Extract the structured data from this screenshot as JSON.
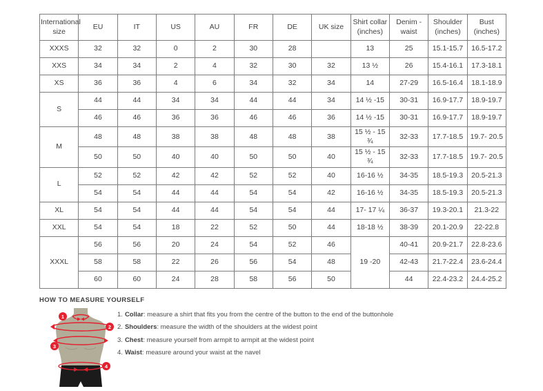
{
  "size_chart": {
    "headers": [
      "International size",
      "EU",
      "IT",
      "US",
      "AU",
      "FR",
      "DE",
      "UK size",
      "Shirt collar (inches)",
      "Denim - waist",
      "Shoulder (inches)",
      "Bust (inches)"
    ],
    "rows": [
      [
        {
          "t": "XXXS"
        },
        {
          "t": "32"
        },
        {
          "t": "32"
        },
        {
          "t": "0"
        },
        {
          "t": "2"
        },
        {
          "t": "30"
        },
        {
          "t": "28"
        },
        {
          "t": ""
        },
        {
          "t": "13"
        },
        {
          "t": "25"
        },
        {
          "t": "15.1-15.7"
        },
        {
          "t": "16.5-17.2"
        }
      ],
      [
        {
          "t": "XXS"
        },
        {
          "t": "34"
        },
        {
          "t": "34"
        },
        {
          "t": "2"
        },
        {
          "t": "4"
        },
        {
          "t": "32"
        },
        {
          "t": "30"
        },
        {
          "t": "32"
        },
        {
          "t": "13 ½"
        },
        {
          "t": "26"
        },
        {
          "t": "15.4-16.1"
        },
        {
          "t": "17.3-18.1"
        }
      ],
      [
        {
          "t": "XS"
        },
        {
          "t": "36"
        },
        {
          "t": "36"
        },
        {
          "t": "4"
        },
        {
          "t": "6"
        },
        {
          "t": "34"
        },
        {
          "t": "32"
        },
        {
          "t": "34"
        },
        {
          "t": "14"
        },
        {
          "t": "27-29"
        },
        {
          "t": "16.5-16.4"
        },
        {
          "t": "18.1-18.9"
        }
      ],
      [
        {
          "t": "S",
          "rs": 2
        },
        {
          "t": "44"
        },
        {
          "t": "44"
        },
        {
          "t": "34"
        },
        {
          "t": "34"
        },
        {
          "t": "44"
        },
        {
          "t": "44"
        },
        {
          "t": "34"
        },
        {
          "t": "14 ½ -15"
        },
        {
          "t": "30-31"
        },
        {
          "t": "16.9-17.7"
        },
        {
          "t": "18.9-19.7"
        }
      ],
      [
        {
          "t": "46"
        },
        {
          "t": "46"
        },
        {
          "t": "36"
        },
        {
          "t": "36"
        },
        {
          "t": "46"
        },
        {
          "t": "46"
        },
        {
          "t": "36"
        },
        {
          "t": "14 ½ -15"
        },
        {
          "t": "30-31"
        },
        {
          "t": "16.9-17.7"
        },
        {
          "t": "18.9-19.7"
        }
      ],
      [
        {
          "t": "M",
          "rs": 2
        },
        {
          "t": "48"
        },
        {
          "t": "48"
        },
        {
          "t": "38"
        },
        {
          "t": "38"
        },
        {
          "t": "48"
        },
        {
          "t": "48"
        },
        {
          "t": "38"
        },
        {
          "t": "15 ½ - 15 ¾"
        },
        {
          "t": "32-33"
        },
        {
          "t": "17.7-18.5"
        },
        {
          "t": "19.7- 20.5"
        }
      ],
      [
        {
          "t": "50"
        },
        {
          "t": "50"
        },
        {
          "t": "40"
        },
        {
          "t": "40"
        },
        {
          "t": "50"
        },
        {
          "t": "50"
        },
        {
          "t": "40"
        },
        {
          "t": "15 ½ - 15 ¾"
        },
        {
          "t": "32-33"
        },
        {
          "t": "17.7-18.5"
        },
        {
          "t": "19.7- 20.5"
        }
      ],
      [
        {
          "t": "L",
          "rs": 2
        },
        {
          "t": "52"
        },
        {
          "t": "52"
        },
        {
          "t": "42"
        },
        {
          "t": "42"
        },
        {
          "t": "52"
        },
        {
          "t": "52"
        },
        {
          "t": "40"
        },
        {
          "t": "16-16 ½"
        },
        {
          "t": "34-35"
        },
        {
          "t": "18.5-19.3"
        },
        {
          "t": "20.5-21.3"
        }
      ],
      [
        {
          "t": "54"
        },
        {
          "t": "54"
        },
        {
          "t": "44"
        },
        {
          "t": "44"
        },
        {
          "t": "54"
        },
        {
          "t": "54"
        },
        {
          "t": "42"
        },
        {
          "t": "16-16 ½"
        },
        {
          "t": "34-35"
        },
        {
          "t": "18.5-19.3"
        },
        {
          "t": "20.5-21.3"
        }
      ],
      [
        {
          "t": "XL"
        },
        {
          "t": "54"
        },
        {
          "t": "54"
        },
        {
          "t": "44"
        },
        {
          "t": "44"
        },
        {
          "t": "54"
        },
        {
          "t": "54"
        },
        {
          "t": "44"
        },
        {
          "t": "17- 17 ¼"
        },
        {
          "t": "36-37"
        },
        {
          "t": "19.3-20.1"
        },
        {
          "t": "21.3-22"
        }
      ],
      [
        {
          "t": "XXL"
        },
        {
          "t": "54"
        },
        {
          "t": "54"
        },
        {
          "t": "18"
        },
        {
          "t": "22"
        },
        {
          "t": "52"
        },
        {
          "t": "50"
        },
        {
          "t": "44"
        },
        {
          "t": "18-18 ½"
        },
        {
          "t": "38-39"
        },
        {
          "t": "20.1-20.9"
        },
        {
          "t": "22-22.8"
        }
      ],
      [
        {
          "t": "XXXL",
          "rs": 3
        },
        {
          "t": "56"
        },
        {
          "t": "56"
        },
        {
          "t": "20"
        },
        {
          "t": "24"
        },
        {
          "t": "54"
        },
        {
          "t": "52"
        },
        {
          "t": "46"
        },
        {
          "t": "19 -20",
          "rs": 3
        },
        {
          "t": "40-41"
        },
        {
          "t": "20.9-21.7"
        },
        {
          "t": "22.8-23.6"
        }
      ],
      [
        {
          "t": "58"
        },
        {
          "t": "58"
        },
        {
          "t": "22"
        },
        {
          "t": "26"
        },
        {
          "t": "56"
        },
        {
          "t": "54"
        },
        {
          "t": "48"
        },
        {
          "t": "42-43"
        },
        {
          "t": "21.7-22.4"
        },
        {
          "t": "23.6-24.4"
        }
      ],
      [
        {
          "t": "60"
        },
        {
          "t": "60"
        },
        {
          "t": "24"
        },
        {
          "t": "28"
        },
        {
          "t": "58"
        },
        {
          "t": "56"
        },
        {
          "t": "50"
        },
        {
          "t": "44"
        },
        {
          "t": "22.4-23.2"
        },
        {
          "t": "24.4-25.2"
        }
      ]
    ]
  },
  "measure": {
    "heading": "HOW TO MEASURE YOURSELF",
    "markers": [
      "1",
      "2",
      "3",
      "4"
    ],
    "steps": [
      {
        "num": "1.",
        "label": "Collar",
        "rest": ": measure a shirt that fits you from the centre of the button to the end of the buttonhole"
      },
      {
        "num": "2.",
        "label": "Shoulders",
        "rest": ": measure the width of the shoulders at the widest point"
      },
      {
        "num": "3.",
        "label": "Chest",
        "rest": ": measure yourself from armpit to armpit at the widest point"
      },
      {
        "num": "4.",
        "label": "Waist",
        "rest": ": measure around your waist at the navel"
      }
    ]
  },
  "colors": {
    "accent_red": "#e4212f",
    "mannequin_body": "#b2ad99",
    "mannequin_shorts": "#1b1b1b",
    "table_border": "#7c7c7c",
    "text": "#414042"
  }
}
